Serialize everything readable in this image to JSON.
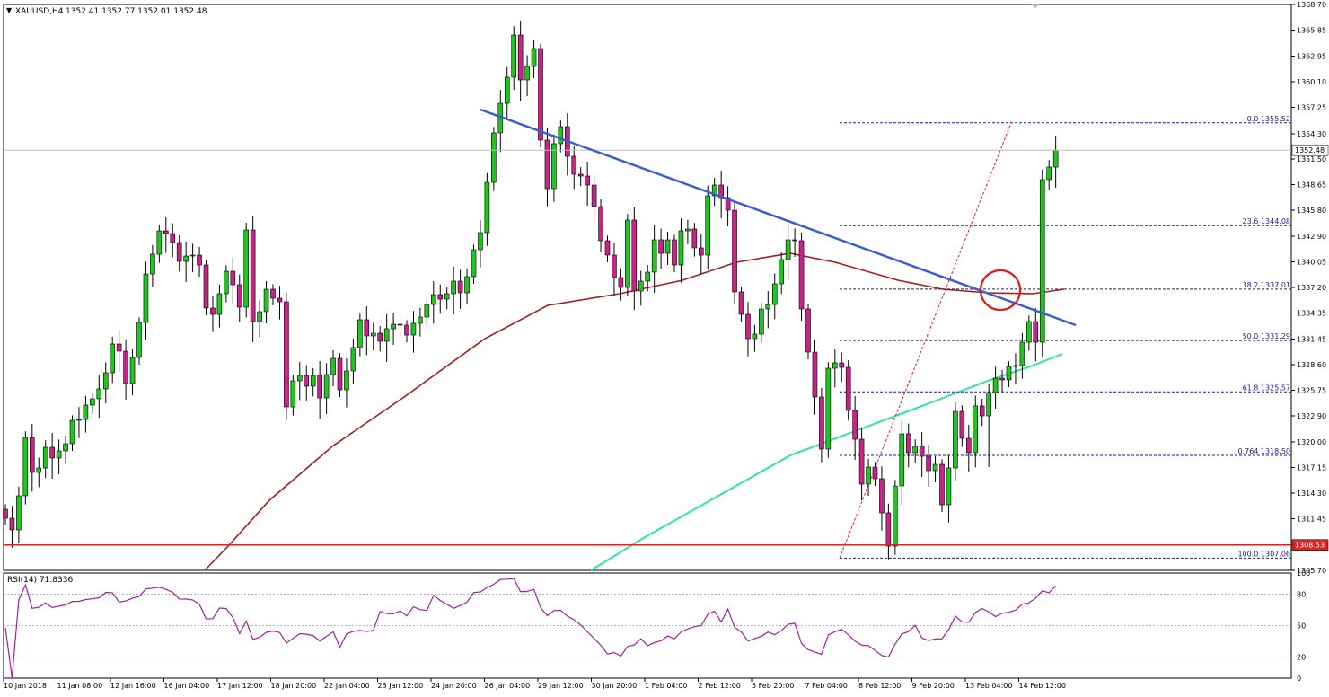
{
  "header": {
    "symbol": "XAUUSD,H4",
    "ohlc": "1352.41 1352.77 1352.01 1352.48"
  },
  "rsi_label": "RSI(14) 71.8336",
  "current_price_label": "1352.48",
  "support_price_label": "1308.53",
  "colors": {
    "bull": "#22c322",
    "bear": "#c7248a",
    "trendline": "#3a5fcd",
    "sma_slow": "#a31d1d",
    "sma_fast": "#2ee6a0",
    "support": "#e32020",
    "fib": "#1d1d9b",
    "rsi": "#a020a0",
    "circle": "#d61f1f"
  },
  "chart_data": {
    "type": "candlestick",
    "symbol": "XAUUSD",
    "timeframe": "H4",
    "ylim": [
      1305.7,
      1368.7
    ],
    "price_ticks": [
      "1368.70",
      "1365.85",
      "1362.95",
      "1360.10",
      "1357.25",
      "1354.30",
      "1351.50",
      "1348.65",
      "1345.80",
      "1342.90",
      "1340.05",
      "1337.20",
      "1334.35",
      "1331.45",
      "1328.60",
      "1325.75",
      "1322.90",
      "1320.00",
      "1317.15",
      "1314.30",
      "1311.45",
      "1308.55",
      "1305.70"
    ],
    "x_labels": [
      "10 Jan 2018",
      "11 Jan 08:00",
      "12 Jan 16:00",
      "16 Jan 04:00",
      "17 Jan 12:00",
      "18 Jan 20:00",
      "22 Jan 04:00",
      "23 Jan 12:00",
      "24 Jan 20:00",
      "26 Jan 04:00",
      "29 Jan 12:00",
      "30 Jan 20:00",
      "1 Feb 04:00",
      "2 Feb 12:00",
      "5 Feb 20:00",
      "7 Feb 04:00",
      "8 Feb 12:00",
      "9 Feb 20:00",
      "13 Feb 04:00",
      "14 Feb 12:00"
    ],
    "candles_close": [
      1311.5,
      1310.2,
      1314,
      1320.5,
      1316.6,
      1317.1,
      1319.4,
      1318.2,
      1319,
      1319.8,
      1322.4,
      1322.5,
      1324.1,
      1324.8,
      1325.9,
      1327.7,
      1330.9,
      1330.1,
      1326.5,
      1329.4,
      1333.3,
      1338.7,
      1340.9,
      1343.5,
      1343.2,
      1342.2,
      1340.1,
      1340.7,
      1340.8,
      1339.7,
      1334.9,
      1334.2,
      1336.5,
      1339,
      1337.5,
      1335,
      1343.6,
      1333.4,
      1334.5,
      1337,
      1336,
      1335.6,
      1323.9,
      1326.8,
      1327.4,
      1326.2,
      1327.4,
      1324.9,
      1327.5,
      1329.3,
      1325.8,
      1327.9,
      1330.5,
      1333.6,
      1331.8,
      1332.1,
      1331.2,
      1332.6,
      1333.1,
      1333,
      1331.9,
      1333.2,
      1333.9,
      1335.3,
      1336.4,
      1335.9,
      1336.5,
      1337.9,
      1336.6,
      1338.4,
      1341.4,
      1343.3,
      1348.9,
      1354.4,
      1357.7,
      1360.6,
      1365.3,
      1360.3,
      1361.8,
      1363.8,
      1353.6,
      1348.2,
      1353.2,
      1355.1,
      1351.8,
      1349.8,
      1349.6,
      1348.6,
      1346.2,
      1342.4,
      1340.8,
      1338.3,
      1337.2,
      1344.7,
      1336.8,
      1337.9,
      1338.9,
      1342.5,
      1341,
      1342.5,
      1339.7,
      1343.5,
      1343.7,
      1341.6,
      1340.8,
      1347.4,
      1348.6,
      1347.2,
      1345.8,
      1336.7,
      1334.2,
      1331.5,
      1332,
      1334.8,
      1335.3,
      1337.6,
      1340.3,
      1342.5,
      1342.4,
      1334.8,
      1330,
      1325,
      1319.2,
      1328.2,
      1328.8,
      1328.3,
      1323.5,
      1320.3,
      1315.3,
      1317.2,
      1315.9,
      1312.1,
      1308.4,
      1315.1,
      1320.9,
      1318.8,
      1319.5,
      1318.4,
      1316.8,
      1317.5,
      1313,
      1317.1,
      1323.4,
      1320.4,
      1318.8,
      1324,
      1322.9,
      1325.5,
      1327.1,
      1326.9,
      1328.4,
      1328.5,
      1331.1,
      1333.4,
      1331.1,
      1349.2,
      1350.6,
      1352.48
    ]
  }
}
